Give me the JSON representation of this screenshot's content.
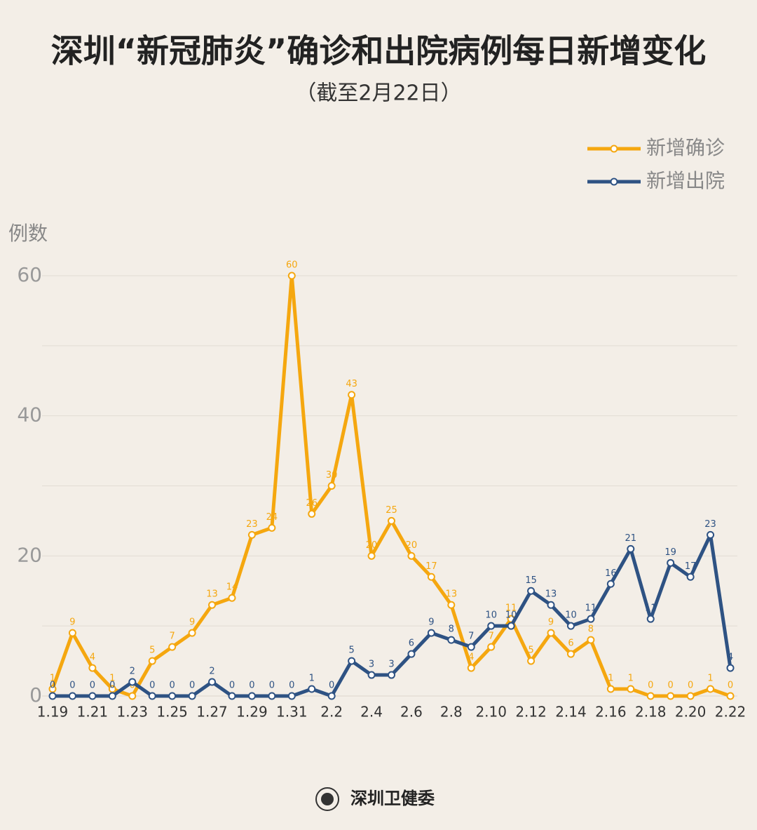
{
  "chart_data": {
    "type": "line",
    "title": "深圳“新冠肺炎”确诊和出院病例每日新增变化",
    "subtitle": "（截至2月22日）",
    "y_label": "例数",
    "categories": [
      "1.19",
      null,
      "1.21",
      null,
      "1.23",
      null,
      "1.25",
      null,
      "1.27",
      null,
      "1.29",
      null,
      "1.31",
      null,
      "2.2",
      null,
      "2.4",
      null,
      "2.6",
      null,
      "2.8",
      null,
      "2.10",
      null,
      "2.12",
      null,
      "2.14",
      null,
      "2.16",
      null,
      "2.18",
      null,
      "2.20",
      null,
      "2.22"
    ],
    "series": [
      {
        "name": "新增确诊",
        "color": "#f5a70f",
        "values": [
          1,
          9,
          4,
          1,
          0,
          5,
          7,
          9,
          13,
          14,
          23,
          24,
          60,
          26,
          30,
          43,
          20,
          25,
          20,
          17,
          13,
          4,
          7,
          11,
          5,
          9,
          6,
          8,
          1,
          1,
          0,
          0,
          0,
          1,
          0
        ]
      },
      {
        "name": "新增出院",
        "color": "#2e5283",
        "values": [
          0,
          0,
          0,
          0,
          2,
          0,
          0,
          0,
          2,
          0,
          0,
          0,
          0,
          1,
          0,
          5,
          3,
          3,
          6,
          9,
          8,
          7,
          10,
          10,
          15,
          13,
          10,
          11,
          16,
          21,
          11,
          19,
          17,
          23,
          4
        ]
      }
    ],
    "ylim": [
      0,
      60
    ],
    "yticks": [
      0,
      20,
      40,
      60
    ],
    "minor_grid": [
      10,
      30,
      50
    ],
    "grid": true,
    "legend": "upper right"
  },
  "footer": "深圳卫健委"
}
